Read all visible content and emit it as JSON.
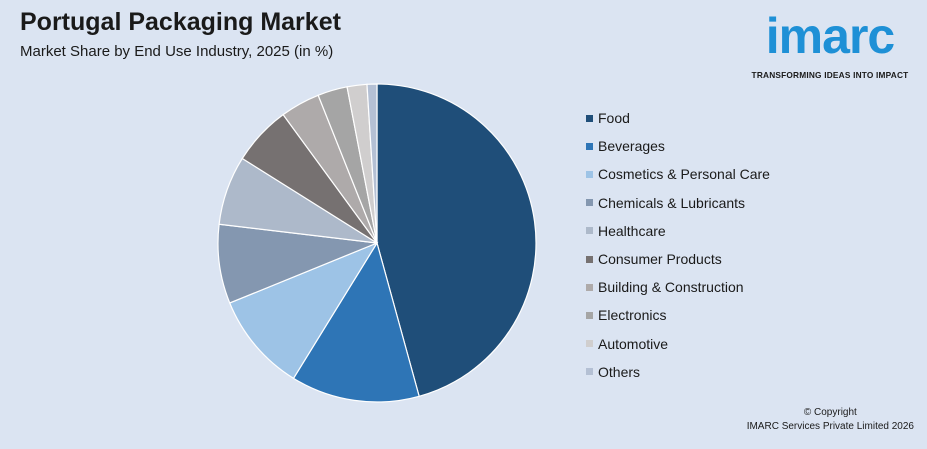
{
  "header": {
    "title": "Portugal Packaging Market",
    "subtitle": "Market Share by End Use Industry, 2025 (in %)"
  },
  "logo": {
    "word": "imarc",
    "tagline": "TRANSFORMING IDEAS INTO IMPACT",
    "color": "#1e90d6"
  },
  "footer": {
    "copyright": "© Copyright",
    "company": "IMARC Services Private Limited 2026"
  },
  "chart_data": {
    "type": "pie",
    "title": "Portugal Packaging Market",
    "subtitle": "Market Share by End Use Industry, 2025 (in %)",
    "legend_position": "right",
    "categories": [
      "Food",
      "Beverages",
      "Cosmetics & Personal Care",
      "Chemicals & Lubricants",
      "Healthcare",
      "Consumer Products",
      "Building & Construction",
      "Electronics",
      "Automotive",
      "Others"
    ],
    "values": [
      45.5,
      13.0,
      10.0,
      8.0,
      7.0,
      6.0,
      4.0,
      3.0,
      2.0,
      1.0
    ],
    "colors": [
      "#1f4e79",
      "#2e75b6",
      "#9dc3e6",
      "#8497b0",
      "#adb9ca",
      "#767171",
      "#aeaaaa",
      "#a5a5a5",
      "#d0cece",
      "#b4c0d4"
    ]
  }
}
